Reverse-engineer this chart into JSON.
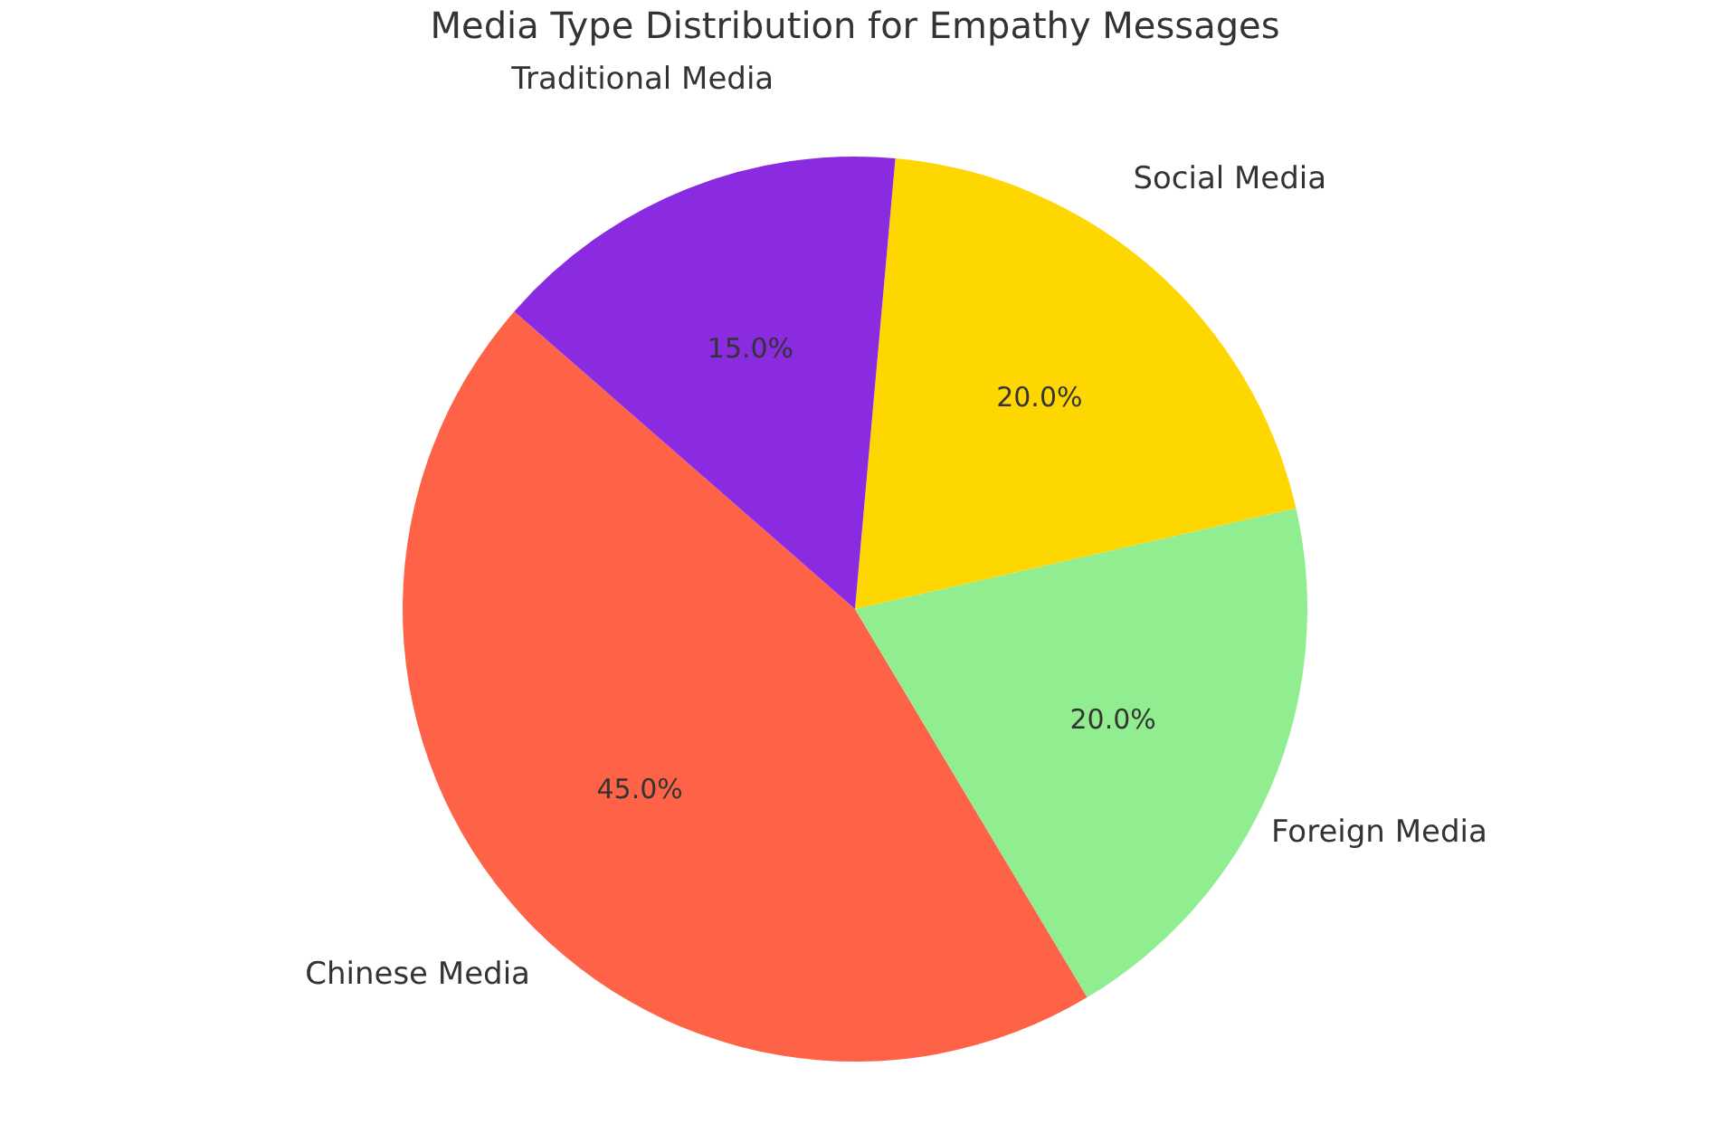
{
  "chart_data": {
    "type": "pie",
    "title": "Media Type Distribution for Empathy Messages",
    "categories": [
      "Chinese Media",
      "Foreign Media",
      "Social Media",
      "Traditional Media"
    ],
    "values": [
      45,
      20,
      20,
      15
    ],
    "colors": [
      "#ff6347",
      "#90ee90",
      "#ffd700",
      "#8a2be2"
    ],
    "value_labels": [
      "45.0%",
      "20.0%",
      "20.0%",
      "15.0%"
    ],
    "legend": false
  }
}
